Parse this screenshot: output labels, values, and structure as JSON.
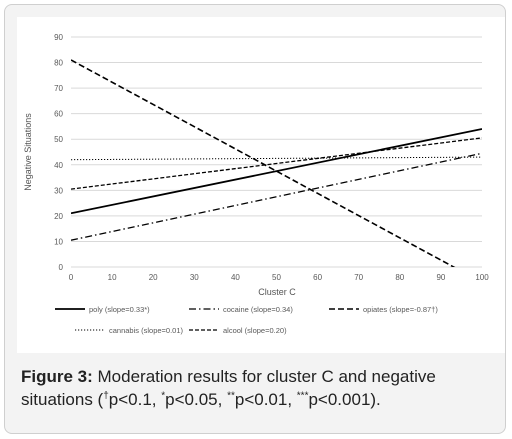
{
  "chart_data": {
    "type": "line",
    "xlabel": "Cluster C",
    "ylabel": "Negative Situations",
    "xlim": [
      0,
      100
    ],
    "ylim": [
      0,
      90
    ],
    "x_ticks": [
      "0",
      "10",
      "20",
      "30",
      "40",
      "50",
      "60",
      "70",
      "80",
      "90",
      "100"
    ],
    "y_ticks": [
      "0",
      "10",
      "20",
      "30",
      "40",
      "50",
      "60",
      "70",
      "80",
      "90"
    ],
    "grid": true,
    "legend_position": "bottom",
    "series": [
      {
        "name": "poly (slope=0.33*)",
        "dash": "solid",
        "x": [
          0,
          100
        ],
        "y": [
          21,
          54
        ]
      },
      {
        "name": "cocaine (slope=0.34)",
        "dash": "dashdot",
        "x": [
          0,
          100
        ],
        "y": [
          10.5,
          44.5
        ]
      },
      {
        "name": "opiates (slope=-0.87†)",
        "dash": "dashed",
        "x": [
          0,
          100
        ],
        "y": [
          81,
          -6
        ]
      },
      {
        "name": "cannabis (slope=0.01)",
        "dash": "dotted",
        "x": [
          0,
          100
        ],
        "y": [
          42,
          43
        ]
      },
      {
        "name": "alcool (slope=0.20)",
        "dash": "longdash",
        "x": [
          0,
          100
        ],
        "y": [
          30.5,
          50.5
        ]
      }
    ]
  },
  "caption": {
    "label": "Figure 3:",
    "text_1": " Moderation results for cluster C and negative situations (",
    "sup_dagger": "†",
    "text_2": "p<0.1, ",
    "sup_1": "*",
    "text_3": "p<0.05, ",
    "sup_2": "**",
    "text_4": "p<0.01, ",
    "sup_3": "***",
    "text_5": "p<0.001)."
  }
}
